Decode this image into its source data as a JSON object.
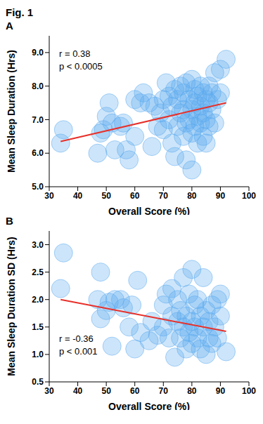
{
  "title": "Fig. 1",
  "chart_data": [
    {
      "type": "scatter",
      "title": "A",
      "x_label": "Overall Score (%)",
      "y_label": "Mean Sleep Duration (Hrs)",
      "annotations": [
        "r = 0.38",
        "p < 0.0005"
      ],
      "xlim": [
        30,
        100
      ],
      "xticks": [
        30,
        40,
        50,
        60,
        70,
        80,
        90,
        100
      ],
      "ylim": [
        5,
        9.5
      ],
      "yticks": [
        {
          "value": 5,
          "label": "5.0"
        },
        {
          "value": 6,
          "label": "6.0"
        },
        {
          "value": 7,
          "label": "7.0"
        },
        {
          "value": 8,
          "label": "8.0"
        },
        {
          "value": 9,
          "label": "9.0"
        }
      ],
      "grid": false,
      "series": [
        {
          "type": "scatter",
          "color": "#5aa9f0",
          "marker": "circle",
          "x": [
            34,
            35,
            47,
            48,
            49,
            50,
            51,
            52,
            53,
            55,
            56,
            57,
            58,
            60,
            60,
            62,
            63,
            65,
            66,
            67,
            68,
            69,
            70,
            70,
            71,
            72,
            72,
            73,
            73,
            74,
            74,
            75,
            75,
            76,
            76,
            77,
            77,
            77,
            78,
            78,
            78,
            79,
            79,
            80,
            80,
            80,
            80,
            81,
            81,
            81,
            82,
            82,
            82,
            83,
            83,
            83,
            84,
            84,
            84,
            85,
            85,
            85,
            86,
            86,
            86,
            87,
            87,
            88,
            88,
            89,
            90,
            90,
            92
          ],
          "values": [
            6.3,
            6.7,
            6.0,
            6.6,
            6.7,
            7.1,
            7.5,
            6.9,
            6.1,
            6.8,
            6.9,
            6.1,
            5.8,
            6.5,
            7.6,
            7.5,
            7.8,
            7.5,
            6.2,
            7.4,
            6.8,
            7.2,
            6.7,
            7.6,
            8.1,
            7.0,
            7.7,
            6.3,
            7.4,
            5.9,
            7.9,
            6.8,
            7.6,
            7.2,
            8.0,
            6.5,
            7.3,
            7.8,
            5.8,
            6.9,
            8.1,
            7.0,
            7.6,
            5.5,
            6.6,
            7.3,
            8.2,
            6.8,
            7.5,
            7.9,
            6.3,
            7.1,
            7.7,
            6.9,
            7.4,
            8.0,
            6.5,
            7.2,
            7.8,
            6.3,
            7.0,
            7.6,
            6.8,
            7.5,
            8.0,
            7.3,
            7.8,
            6.9,
            8.4,
            7.6,
            8.5,
            7.8,
            8.8
          ]
        },
        {
          "type": "line",
          "color": "#e8302a",
          "line_style": "solid",
          "x": [
            34,
            92
          ],
          "values": [
            6.35,
            7.5
          ]
        }
      ]
    },
    {
      "type": "scatter",
      "title": "B",
      "x_label": "Overall Score (%)",
      "y_label": "Mean Sleep Duration SD (Hrs)",
      "annotations": [
        "r = -0.36",
        "p < 0.001"
      ],
      "xlim": [
        30,
        100
      ],
      "xticks": [
        30,
        40,
        50,
        60,
        70,
        80,
        90,
        100
      ],
      "ylim": [
        0.5,
        3.25
      ],
      "yticks": [
        0.5,
        {
          "value": 1,
          "label": "1.0"
        },
        1.5,
        {
          "value": 2,
          "label": "2.0"
        },
        2.5,
        {
          "value": 3,
          "label": "3.0"
        }
      ],
      "grid": false,
      "series": [
        {
          "type": "scatter",
          "color": "#5aa9f0",
          "marker": "circle",
          "x": [
            34,
            35,
            47,
            48,
            48,
            50,
            51,
            52,
            53,
            55,
            56,
            58,
            59,
            60,
            61,
            62,
            65,
            66,
            68,
            70,
            70,
            71,
            72,
            73,
            73,
            74,
            75,
            75,
            76,
            76,
            77,
            77,
            78,
            78,
            79,
            79,
            80,
            80,
            80,
            81,
            81,
            82,
            82,
            83,
            83,
            84,
            84,
            85,
            85,
            86,
            86,
            87,
            87,
            88,
            89,
            89,
            90,
            90,
            92
          ],
          "values": [
            2.2,
            2.85,
            2.0,
            2.5,
            1.65,
            1.8,
            1.95,
            1.15,
            2.0,
            2.0,
            1.85,
            1.5,
            1.9,
            1.1,
            2.35,
            1.4,
            1.25,
            1.6,
            1.35,
            1.9,
            1.5,
            2.1,
            1.3,
            1.7,
            2.2,
            0.95,
            1.6,
            2.0,
            1.3,
            1.8,
            2.4,
            1.5,
            1.1,
            1.7,
            2.1,
            1.4,
            2.55,
            1.6,
            1.2,
            1.9,
            1.5,
            1.3,
            2.0,
            1.7,
            1.1,
            2.4,
            1.5,
            1.0,
            1.8,
            1.3,
            1.6,
            1.9,
            1.2,
            1.5,
            2.0,
            1.3,
            2.1,
            1.7,
            1.05
          ]
        },
        {
          "type": "line",
          "color": "#e8302a",
          "line_style": "solid",
          "x": [
            34,
            92
          ],
          "values": [
            2.0,
            1.42
          ]
        }
      ]
    }
  ]
}
